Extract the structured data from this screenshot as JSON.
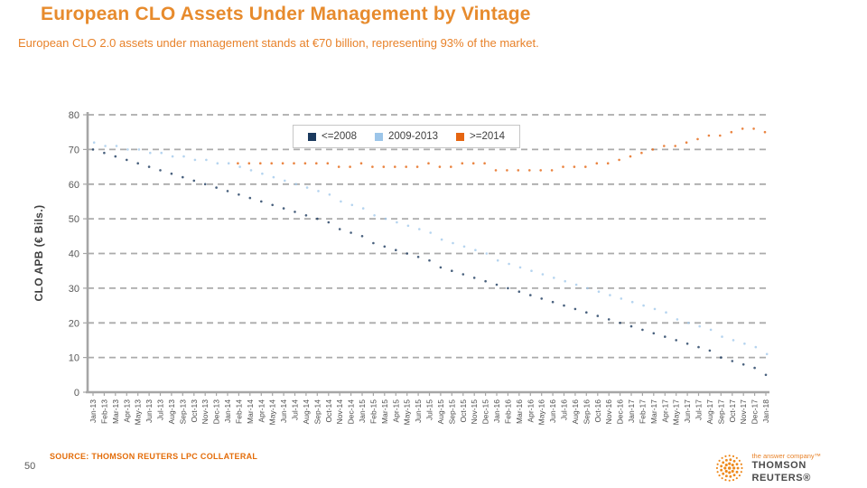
{
  "slide": {
    "title": "European CLO Assets Under Management by Vintage",
    "subtitle": "European CLO 2.0 assets under management stands at €70 billion, representing 93% of the market.",
    "source": "SOURCE: THOMSON REUTERS LPC COLLATERAL",
    "page_number": "50",
    "logo": {
      "tagline": "the answer company™",
      "brand": "THOMSON REUTERS®"
    },
    "colors": {
      "accent_orange": "#E78B2D",
      "source_orange": "#E36C09",
      "navy": "#1B3A5E",
      "light_blue": "#9CC5E9",
      "orange": "#E56511",
      "grid_gray": "#ABABAB",
      "text_gray": "#595959"
    }
  },
  "chart_data": {
    "type": "scatter",
    "stacked": true,
    "note": "Stacked vintage buckets rendered as faint dot markers; dots mark cumulative boundaries (<=2008, +2009-2013, +>=2014 = total)",
    "title": "",
    "xlabel": "",
    "ylabel": "CLO APB (€ Bils.)",
    "ylim": [
      0,
      80
    ],
    "yticks": [
      0,
      10,
      20,
      30,
      40,
      50,
      60,
      70,
      80
    ],
    "grid": "dashed-horizontal",
    "legend_position": "top-center",
    "categories": [
      "Jan-13",
      "Feb-13",
      "Mar-13",
      "Apr-13",
      "May-13",
      "Jun-13",
      "Jul-13",
      "Aug-13",
      "Sep-13",
      "Oct-13",
      "Nov-13",
      "Dec-13",
      "Jan-14",
      "Feb-14",
      "Mar-14",
      "Apr-14",
      "May-14",
      "Jun-14",
      "Jul-14",
      "Aug-14",
      "Sep-14",
      "Oct-14",
      "Nov-14",
      "Dec-14",
      "Jan-15",
      "Feb-15",
      "Mar-15",
      "Apr-15",
      "May-15",
      "Jun-15",
      "Jul-15",
      "Aug-15",
      "Sep-15",
      "Oct-15",
      "Nov-15",
      "Dec-15",
      "Jan-16",
      "Feb-16",
      "Mar-16",
      "Apr-16",
      "May-16",
      "Jun-16",
      "Jul-16",
      "Aug-16",
      "Sep-16",
      "Oct-16",
      "Nov-16",
      "Dec-16",
      "Jan-17",
      "Feb-17",
      "Mar-17",
      "Apr-17",
      "May-17",
      "Jun-17",
      "Jul-17",
      "Aug-17",
      "Sep-17",
      "Oct-17",
      "Nov-17",
      "Dec-17",
      "Jan-18"
    ],
    "series": [
      {
        "name": "<=2008",
        "color": "#1B3A5E",
        "values": [
          70,
          69,
          68,
          67,
          66,
          65,
          64,
          63,
          62,
          61,
          60,
          59,
          58,
          57,
          56,
          55,
          54,
          53,
          52,
          51,
          50,
          49,
          47,
          46,
          45,
          43,
          42,
          41,
          40,
          39,
          38,
          36,
          35,
          34,
          33,
          32,
          31,
          30,
          29,
          28,
          27,
          26,
          25,
          24,
          23,
          22,
          21,
          20,
          19,
          18,
          17,
          16,
          15,
          14,
          13,
          12,
          10,
          9,
          8,
          7,
          5
        ]
      },
      {
        "name": "2009-2013",
        "color": "#9CC5E9",
        "values": [
          2,
          2,
          3,
          3,
          4,
          4,
          5,
          5,
          6,
          6,
          7,
          7,
          8,
          8,
          8,
          8,
          8,
          8,
          8,
          8,
          8,
          8,
          8,
          8,
          8,
          8,
          8,
          8,
          8,
          8,
          8,
          8,
          8,
          8,
          8,
          8,
          7,
          7,
          7,
          7,
          7,
          7,
          7,
          7,
          7,
          7,
          7,
          7,
          7,
          7,
          7,
          7,
          6,
          6,
          6,
          6,
          6,
          6,
          6,
          6,
          6
        ]
      },
      {
        "name": ">=2014",
        "color": "#E56511",
        "values": [
          0,
          0,
          0,
          0,
          0,
          0,
          0,
          0,
          0,
          0,
          0,
          0,
          0,
          1,
          2,
          3,
          4,
          5,
          6,
          7,
          8,
          9,
          10,
          11,
          13,
          14,
          15,
          16,
          17,
          18,
          20,
          21,
          22,
          24,
          25,
          26,
          26,
          27,
          28,
          29,
          30,
          31,
          33,
          34,
          35,
          37,
          38,
          40,
          42,
          44,
          46,
          48,
          50,
          52,
          54,
          56,
          58,
          60,
          62,
          63,
          64
        ]
      }
    ]
  }
}
